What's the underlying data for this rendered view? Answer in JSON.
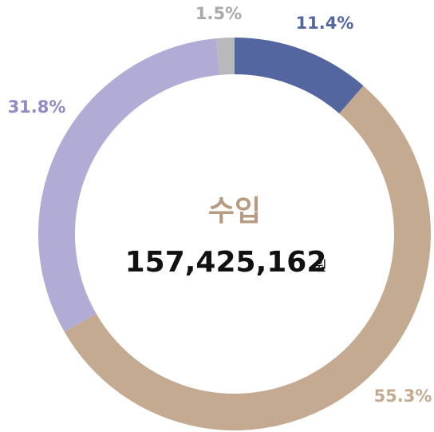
{
  "chart_data": {
    "type": "donut",
    "categories": [
      "11.4%",
      "55.3%",
      "31.8%",
      "1.5%"
    ],
    "values": [
      11.4,
      55.3,
      31.8,
      1.5
    ],
    "value_labels": [
      "11.4%",
      "55.3%",
      "31.8%",
      "1.5%"
    ],
    "colors": [
      "#5466a0",
      "#c4aa91",
      "#b0acd6",
      "#b9b9bc"
    ],
    "label_colors": [
      "#5466a0",
      "#c4aa91",
      "#8f89c4",
      "#a9a9ad"
    ],
    "center_title": "수입",
    "center_value": "157,425,162",
    "center_unit": "원"
  }
}
